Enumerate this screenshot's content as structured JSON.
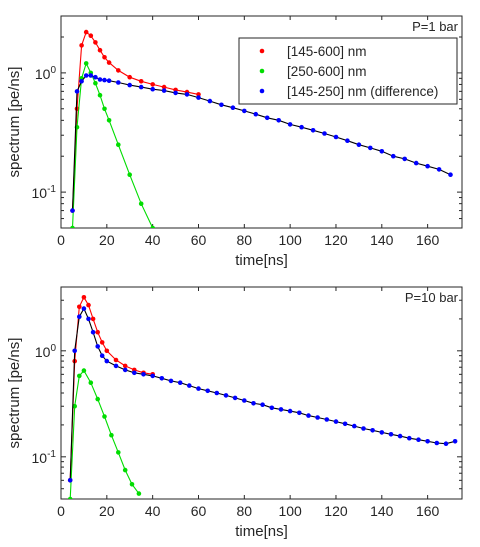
{
  "figure": {
    "colors": {
      "red": "#ff0000",
      "green": "#00dd00",
      "blue": "#0000ff",
      "fit": "#000000"
    }
  },
  "chart_data": [
    {
      "type": "scatter",
      "annotation": "P=1 bar",
      "xlabel": "time[ns]",
      "ylabel": "spectrum [pe/ns]",
      "xlim": [
        0,
        175
      ],
      "ylim": [
        0.05,
        3
      ],
      "yscale": "log",
      "xticks": [
        "0",
        "20",
        "40",
        "60",
        "80",
        "100",
        "120",
        "140",
        "160"
      ],
      "yticks": [
        "10^-1",
        "10^0"
      ],
      "grid": false,
      "legend": {
        "position": "top-right"
      },
      "series": [
        {
          "name": "[145-600] nm",
          "color": "red",
          "x": [
            5,
            7,
            9,
            11,
            13,
            15,
            17,
            19,
            21,
            25,
            30,
            35,
            40,
            45,
            50,
            55,
            60
          ],
          "y": [
            0.07,
            0.5,
            1.7,
            2.2,
            2.05,
            1.8,
            1.55,
            1.35,
            1.22,
            1.05,
            0.92,
            0.85,
            0.8,
            0.76,
            0.72,
            0.69,
            0.66
          ]
        },
        {
          "name": "[250-600] nm",
          "color": "green",
          "x": [
            5,
            7,
            9,
            11,
            13,
            15,
            17,
            19,
            21,
            25,
            30,
            35,
            40
          ],
          "y": [
            0.05,
            0.35,
            0.9,
            1.2,
            1.0,
            0.82,
            0.65,
            0.5,
            0.4,
            0.25,
            0.14,
            0.08,
            0.05
          ]
        },
        {
          "name": "[145-250] nm (difference)",
          "color": "blue",
          "x": [
            5,
            7,
            9,
            11,
            13,
            15,
            17,
            19,
            21,
            25,
            30,
            35,
            40,
            45,
            50,
            55,
            60,
            65,
            70,
            75,
            80,
            85,
            90,
            95,
            100,
            105,
            110,
            115,
            120,
            125,
            130,
            135,
            140,
            145,
            150,
            155,
            160,
            165,
            170
          ],
          "y": [
            0.07,
            0.7,
            0.85,
            0.95,
            0.95,
            0.92,
            0.88,
            0.87,
            0.86,
            0.83,
            0.79,
            0.76,
            0.73,
            0.71,
            0.68,
            0.66,
            0.62,
            0.58,
            0.54,
            0.51,
            0.48,
            0.45,
            0.42,
            0.4,
            0.37,
            0.35,
            0.33,
            0.31,
            0.29,
            0.27,
            0.25,
            0.235,
            0.22,
            0.2,
            0.19,
            0.175,
            0.165,
            0.155,
            0.14
          ]
        }
      ]
    },
    {
      "type": "scatter",
      "annotation": "P=10 bar",
      "xlabel": "time[ns]",
      "ylabel": "spectrum [pe/ns]",
      "xlim": [
        0,
        175
      ],
      "ylim": [
        0.04,
        4
      ],
      "yscale": "log",
      "xticks": [
        "0",
        "20",
        "40",
        "60",
        "80",
        "100",
        "120",
        "140",
        "160"
      ],
      "yticks": [
        "10^-1",
        "10^0"
      ],
      "grid": false,
      "series": [
        {
          "color": "red",
          "x": [
            4,
            6,
            8,
            10,
            12,
            14,
            16,
            18,
            20,
            24,
            28,
            32,
            36,
            40
          ],
          "y": [
            0.06,
            0.8,
            2.6,
            3.2,
            2.7,
            2.0,
            1.5,
            1.2,
            1.0,
            0.82,
            0.72,
            0.66,
            0.62,
            0.6
          ]
        },
        {
          "color": "green",
          "x": [
            4,
            6,
            8,
            10,
            13,
            16,
            19,
            22,
            25,
            28,
            31,
            34
          ],
          "y": [
            0.04,
            0.3,
            0.58,
            0.65,
            0.5,
            0.35,
            0.24,
            0.16,
            0.11,
            0.075,
            0.055,
            0.045
          ]
        },
        {
          "color": "blue",
          "x": [
            4,
            6,
            8,
            10,
            12,
            14,
            16,
            18,
            20,
            24,
            28,
            32,
            36,
            40,
            44,
            48,
            52,
            56,
            60,
            64,
            68,
            72,
            76,
            80,
            84,
            88,
            92,
            96,
            100,
            104,
            108,
            112,
            116,
            120,
            124,
            128,
            132,
            136,
            140,
            144,
            148,
            152,
            156,
            160,
            164,
            168,
            172
          ],
          "y": [
            0.06,
            1.0,
            2.1,
            2.5,
            2.0,
            1.5,
            1.1,
            0.9,
            0.8,
            0.72,
            0.66,
            0.62,
            0.6,
            0.58,
            0.55,
            0.52,
            0.5,
            0.47,
            0.44,
            0.42,
            0.4,
            0.38,
            0.36,
            0.34,
            0.32,
            0.31,
            0.29,
            0.28,
            0.27,
            0.26,
            0.245,
            0.235,
            0.225,
            0.215,
            0.205,
            0.195,
            0.185,
            0.178,
            0.17,
            0.163,
            0.157,
            0.15,
            0.145,
            0.14,
            0.135,
            0.133,
            0.14
          ]
        }
      ]
    }
  ]
}
